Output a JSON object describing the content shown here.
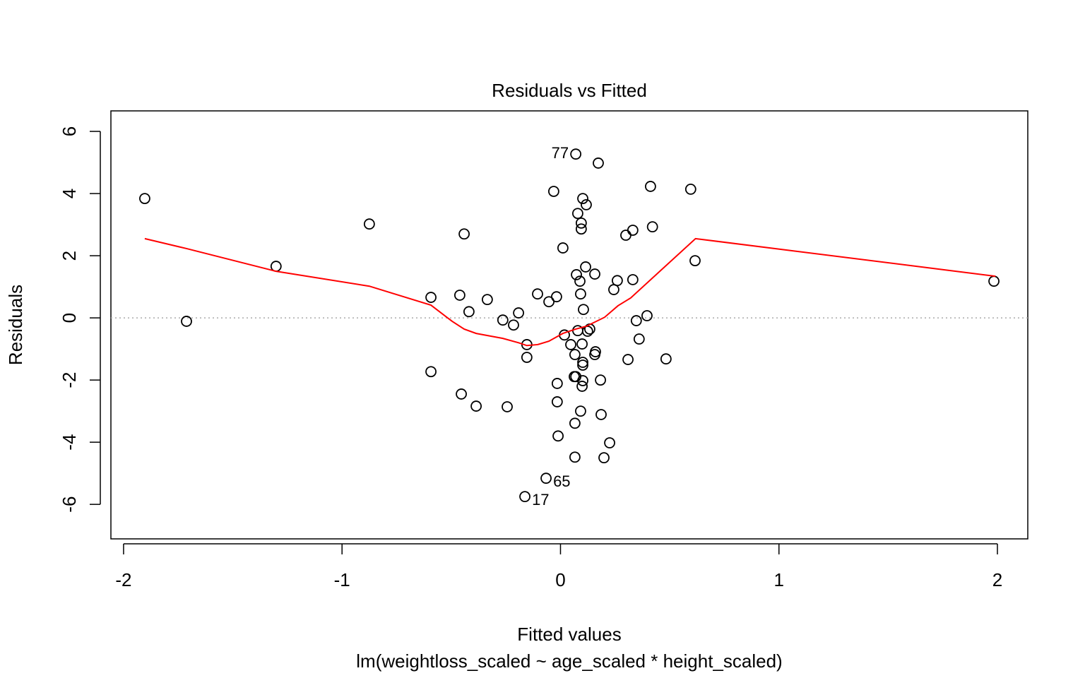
{
  "chart_data": {
    "type": "scatter",
    "title": "Residuals vs Fitted",
    "x_label": "Fitted values",
    "subtitle": "lm(weightloss_scaled ~ age_scaled * height_scaled)",
    "y_label": "Residuals",
    "xlim": [
      -2.058,
      2.139
    ],
    "ylim": [
      -7.11,
      6.66
    ],
    "xticks": [
      -2,
      -1,
      0,
      1,
      2
    ],
    "yticks": [
      -6,
      -4,
      -2,
      0,
      2,
      4,
      6
    ],
    "reference_line": {
      "y": 0,
      "color": "#aaaaaa"
    },
    "series": [
      {
        "name": "Residuals",
        "color": "#000000",
        "x": [
          -1.903,
          -1.712,
          -1.302,
          -0.875,
          -0.593,
          -0.593,
          -0.461,
          -0.441,
          -0.419,
          -0.454,
          -0.386,
          -0.335,
          -0.264,
          -0.244,
          -0.215,
          -0.192,
          -0.154,
          -0.154,
          -0.163,
          -0.105,
          -0.066,
          -0.053,
          -0.031,
          -0.018,
          -0.015,
          -0.015,
          -0.011,
          0.011,
          0.018,
          0.047,
          0.07,
          0.066,
          0.07,
          0.063,
          0.066,
          0.066,
          0.073,
          0.079,
          0.079,
          0.089,
          0.092,
          0.092,
          0.095,
          0.095,
          0.099,
          0.102,
          0.102,
          0.102,
          0.102,
          0.099,
          0.105,
          0.115,
          0.118,
          0.124,
          0.134,
          0.157,
          0.16,
          0.157,
          0.173,
          0.183,
          0.186,
          0.199,
          0.225,
          0.244,
          0.26,
          0.299,
          0.309,
          0.331,
          0.331,
          0.347,
          0.36,
          0.396,
          0.412,
          0.421,
          0.483,
          0.596,
          0.616,
          1.984
        ],
        "values": [
          3.84,
          -0.11,
          1.66,
          3.02,
          0.66,
          -1.73,
          0.73,
          2.7,
          0.2,
          -2.45,
          -2.84,
          0.59,
          -0.07,
          -2.86,
          -0.23,
          0.16,
          -0.86,
          -1.27,
          -5.75,
          0.77,
          -5.16,
          0.52,
          4.07,
          0.68,
          -2.7,
          -2.11,
          -3.8,
          2.25,
          -0.55,
          -0.86,
          5.27,
          -1.18,
          -1.89,
          -1.89,
          -3.39,
          -4.48,
          1.39,
          3.36,
          -0.41,
          1.18,
          0.77,
          -3.0,
          3.05,
          2.86,
          -0.84,
          3.84,
          -1.43,
          -1.52,
          -2.02,
          -2.2,
          0.27,
          1.64,
          3.64,
          -0.43,
          -0.36,
          1.41,
          -1.09,
          -1.18,
          4.98,
          -2.0,
          -3.11,
          -4.5,
          -4.02,
          0.91,
          1.2,
          2.66,
          -1.34,
          2.82,
          1.23,
          -0.09,
          -0.68,
          0.07,
          4.23,
          2.93,
          -1.32,
          4.14,
          1.84,
          1.18
        ]
      },
      {
        "name": "Smoother",
        "color": "#ff0000",
        "line": true,
        "x": [
          -1.903,
          -1.712,
          -1.302,
          -0.875,
          -0.593,
          -0.496,
          -0.441,
          -0.386,
          -0.264,
          -0.192,
          -0.154,
          -0.105,
          -0.053,
          0.011,
          0.07,
          0.118,
          0.202,
          0.263,
          0.321,
          0.618,
          1.991
        ],
        "values": [
          2.55,
          2.23,
          1.5,
          1.02,
          0.41,
          -0.11,
          -0.36,
          -0.5,
          -0.66,
          -0.8,
          -0.89,
          -0.86,
          -0.75,
          -0.5,
          -0.36,
          -0.27,
          0.02,
          0.39,
          0.64,
          2.55,
          1.34
        ]
      }
    ],
    "annotations": [
      {
        "text": "77",
        "x": 0.07,
        "y": 5.27,
        "position": "left"
      },
      {
        "text": "65",
        "x": -0.066,
        "y": -5.16,
        "position": "right"
      },
      {
        "text": "17",
        "x": -0.163,
        "y": -5.75,
        "position": "right"
      }
    ]
  }
}
